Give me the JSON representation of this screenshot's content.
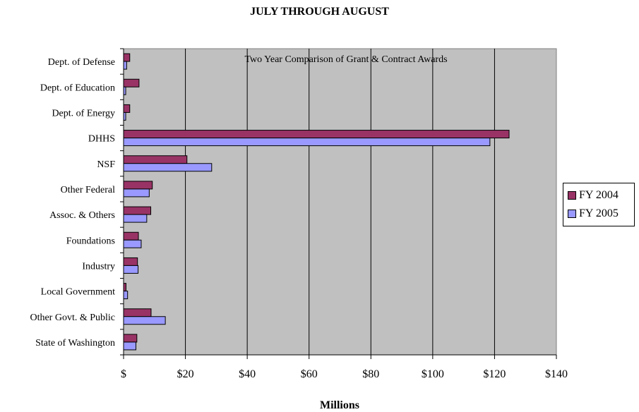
{
  "chart_data": {
    "type": "bar",
    "orientation": "horizontal",
    "title": "JULY THROUGH AUGUST",
    "annotation": "Two Year Comparison of Grant & Contract Awards",
    "xlabel": "Millions",
    "ylabel": "",
    "xlim": [
      0,
      140
    ],
    "x_ticks": [
      "$",
      "$20",
      "$40",
      "$60",
      "$80",
      "$100",
      "$120",
      "$140"
    ],
    "x_tick_values": [
      0,
      20,
      40,
      60,
      80,
      100,
      120,
      140
    ],
    "grid": "vertical",
    "legend_position": "right",
    "categories": [
      "Dept. of Defense",
      "Dept. of Education",
      "Dept. of Energy",
      "DHHS",
      "NSF",
      "Other Federal",
      "Assoc. & Others",
      "Foundations",
      "Industry",
      "Local Government",
      "Other Govt. & Public",
      "State of Washington"
    ],
    "series": [
      {
        "name": "FY 2004",
        "color": "#993366",
        "values": [
          2.0,
          5.0,
          2.0,
          124.7,
          20.5,
          9.3,
          8.8,
          4.8,
          4.5,
          0.8,
          8.9,
          4.3
        ]
      },
      {
        "name": "FY 2005",
        "color": "#9999ff",
        "values": [
          1.0,
          0.7,
          0.7,
          118.5,
          28.5,
          8.3,
          7.5,
          5.7,
          4.7,
          1.3,
          13.5,
          4.0
        ]
      }
    ],
    "plot_background": "#c0c0c0"
  }
}
